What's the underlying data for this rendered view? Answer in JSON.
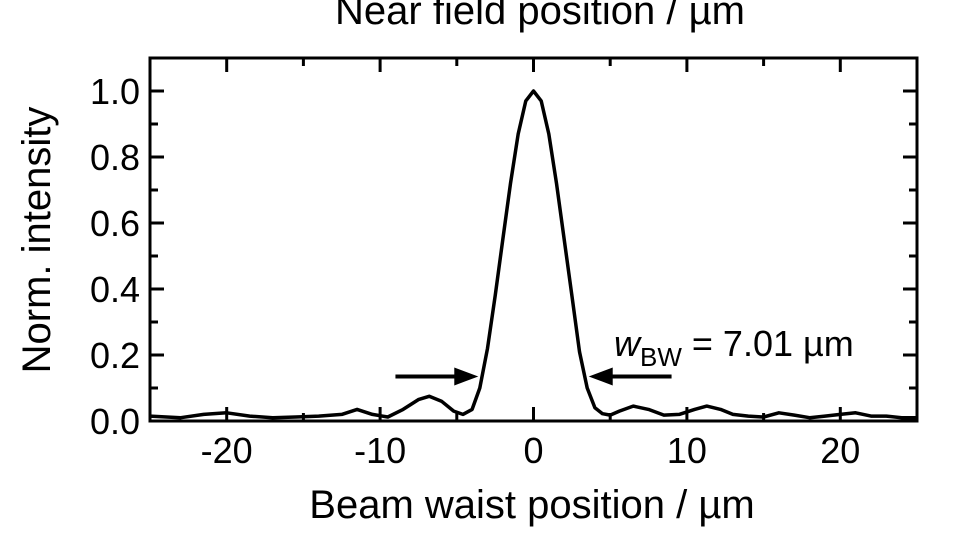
{
  "chart_data": {
    "type": "line",
    "top_title": "Near field position / µm",
    "xlabel": "Beam waist position / µm",
    "ylabel": "Norm. intensity",
    "xlim": [
      -25,
      25
    ],
    "ylim": [
      0.0,
      1.1
    ],
    "x_ticks": [
      -20,
      -10,
      0,
      10,
      20
    ],
    "x_tick_labels": [
      "-20",
      "-10",
      "0",
      "10",
      "20"
    ],
    "y_ticks": [
      0.0,
      0.2,
      0.4,
      0.6,
      0.8,
      1.0
    ],
    "y_tick_labels": [
      "0.0",
      "0.2",
      "0.4",
      "0.6",
      "0.8",
      "1.0"
    ],
    "grid": false,
    "annotation": {
      "symbol": "w",
      "subscript": "BW",
      "text": " = 7.01 µm",
      "arrow_from_x": -9,
      "arrow_to_x": -3.6,
      "arrow_right_from_x": 9,
      "arrow_right_to_x": 3.6,
      "arrow_y": 0.135
    },
    "series": [
      {
        "name": "Norm. intensity",
        "x": [
          -25,
          -23,
          -21.5,
          -20,
          -18.5,
          -17,
          -15.5,
          -14,
          -12.5,
          -11.5,
          -10.5,
          -9.5,
          -8.5,
          -7.5,
          -6.8,
          -6,
          -5.2,
          -4.6,
          -4,
          -3.5,
          -3,
          -2.5,
          -2,
          -1.5,
          -1,
          -0.5,
          0,
          0.5,
          1,
          1.5,
          2,
          2.5,
          3,
          3.5,
          4,
          4.5,
          5,
          5.6,
          6.5,
          7.5,
          8.5,
          9.5,
          10.5,
          11.3,
          12.2,
          13,
          14,
          15,
          16,
          17,
          18,
          19,
          20,
          21,
          22,
          23,
          24,
          25
        ],
        "y": [
          0.015,
          0.01,
          0.02,
          0.025,
          0.015,
          0.01,
          0.012,
          0.015,
          0.02,
          0.035,
          0.02,
          0.012,
          0.035,
          0.065,
          0.075,
          0.06,
          0.03,
          0.02,
          0.035,
          0.1,
          0.22,
          0.38,
          0.55,
          0.72,
          0.87,
          0.97,
          1.0,
          0.97,
          0.87,
          0.72,
          0.55,
          0.38,
          0.21,
          0.1,
          0.04,
          0.022,
          0.018,
          0.03,
          0.045,
          0.035,
          0.018,
          0.02,
          0.035,
          0.045,
          0.035,
          0.02,
          0.015,
          0.012,
          0.025,
          0.018,
          0.01,
          0.015,
          0.02,
          0.025,
          0.015,
          0.015,
          0.01,
          0.01
        ]
      }
    ]
  }
}
